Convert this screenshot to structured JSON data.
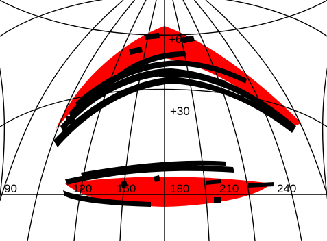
{
  "map": {
    "projection": "aitoff",
    "center_longitude": 180,
    "graticule": {
      "lat_step_deg": 30,
      "lon_step_deg": 30
    },
    "latitude_labels": [
      "+60",
      "+30"
    ],
    "longitude_labels": [
      "90",
      "120",
      "150",
      "180",
      "210",
      "240"
    ],
    "colors": {
      "coverage_red": "#ff0000",
      "coverage_black": "#000000",
      "grid": "#000000",
      "background": "#ffffff"
    },
    "regions": [
      {
        "name": "northern-coverage",
        "lon_range": [
          110,
          240
        ],
        "lat_range": [
          25,
          62
        ]
      },
      {
        "name": "equatorial-coverage",
        "lon_range": [
          110,
          235
        ],
        "lat_range": [
          -2,
          8
        ]
      }
    ]
  }
}
